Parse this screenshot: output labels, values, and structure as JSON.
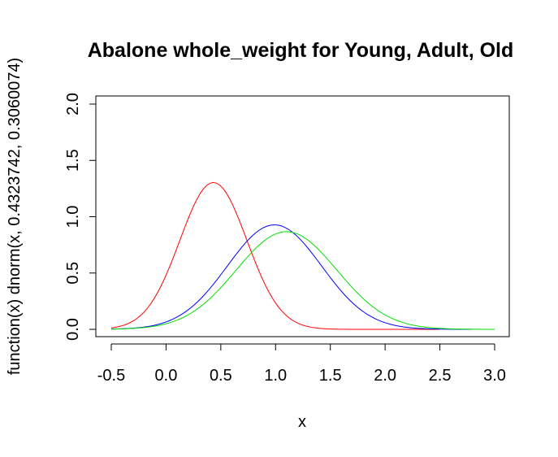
{
  "chart_data": {
    "type": "line",
    "title": "Abalone whole_weight for Young, Adult, Old",
    "xlabel": "x",
    "ylabel": "function(x) dnorm(x, 0.4323742, 0.3060074)",
    "xlim": [
      -0.5,
      3.0
    ],
    "ylim": [
      0.0,
      2.0
    ],
    "x_ticks": [
      -0.5,
      0.0,
      0.5,
      1.0,
      1.5,
      2.0,
      2.5,
      3.0
    ],
    "x_tick_labels": [
      "-0.5",
      "0.0",
      "0.5",
      "1.0",
      "1.5",
      "2.0",
      "2.5",
      "3.0"
    ],
    "y_ticks": [
      0.0,
      0.5,
      1.0,
      1.5,
      2.0
    ],
    "y_tick_labels": [
      "0.0",
      "0.5",
      "1.0",
      "1.5",
      "2.0"
    ],
    "grid": false,
    "legend": "none",
    "series": [
      {
        "color": "#ff0000",
        "distribution": "normal",
        "mean": 0.4323742,
        "sd": 0.3060074,
        "x_range": [
          -0.5,
          2.5
        ]
      },
      {
        "color": "#0000ff",
        "distribution": "normal",
        "mean": 0.99,
        "sd": 0.43,
        "x_range": [
          -0.5,
          2.8
        ]
      },
      {
        "color": "#00dd00",
        "distribution": "normal",
        "mean": 1.1,
        "sd": 0.46,
        "x_range": [
          -0.5,
          3.0
        ]
      }
    ]
  }
}
